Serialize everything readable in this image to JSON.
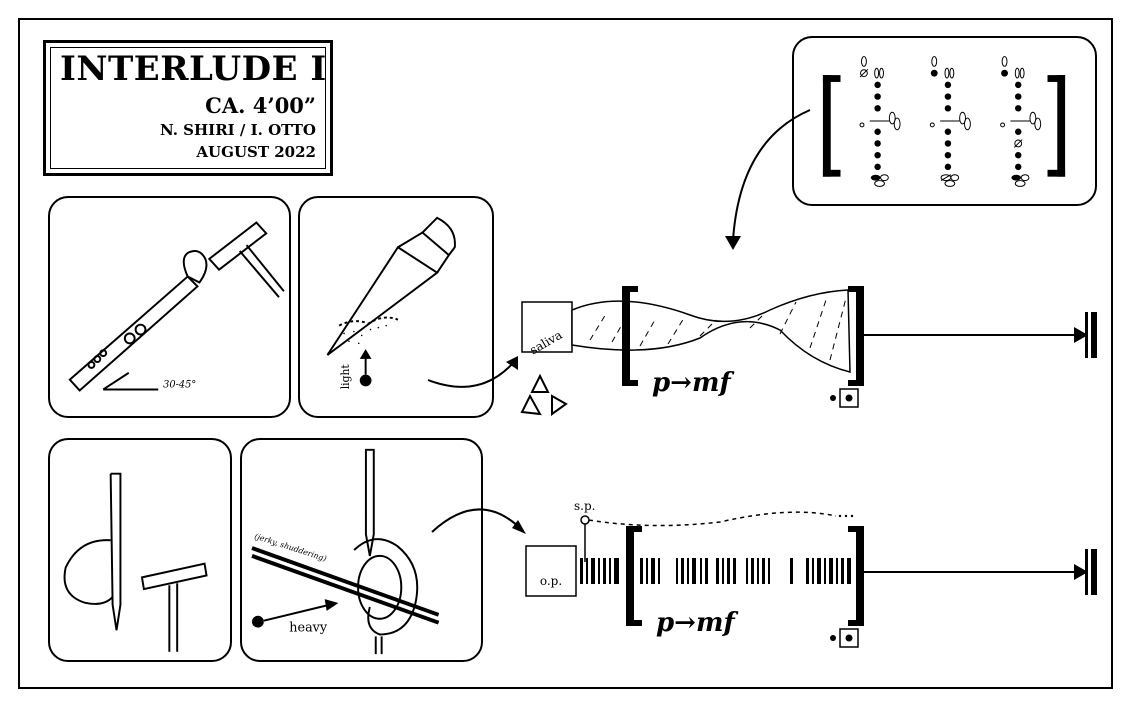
{
  "header": {
    "title": "INTERLUDE I",
    "duration": "CA. 4’00”",
    "authors": "N. SHIRI / I. OTTO",
    "date": "AUGUST 2022"
  },
  "panels": {
    "flute_angle": {
      "angle_label": "30-45°"
    },
    "reed_scrape": {
      "pressure_label": "light"
    },
    "bow_scrape": {
      "pressure_label": "heavy",
      "manner_label": "(jerky, shuddering)"
    }
  },
  "row1": {
    "source_label": "saliva",
    "dynamic": "p→mf"
  },
  "row2": {
    "source_label": "o.p.",
    "position_label": "s.p.",
    "dynamic": "p→mf"
  },
  "fingering_chart": {
    "columns": 3,
    "icons": [
      "bracket-left-icon",
      "bracket-right-icon"
    ]
  },
  "icons": {
    "recycle": "recycle-icon",
    "stop": "end-barline-icon",
    "arrow": "curved-arrow-icon"
  }
}
